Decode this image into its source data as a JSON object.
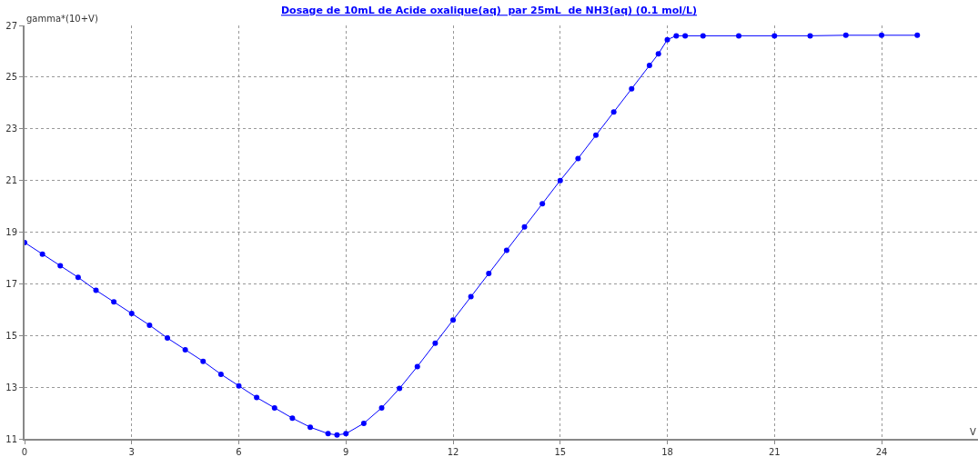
{
  "chart_data": {
    "type": "line",
    "title": "Dosage de 10mL de Acide oxalique(aq)  par 25mL  de NH3(aq) (0.1 mol/L)",
    "xlabel": "V",
    "ylabel": "gamma*(10+V)",
    "x": [
      0,
      0.5,
      1,
      1.5,
      2,
      2.5,
      3,
      3.5,
      4,
      4.5,
      5,
      5.5,
      6,
      6.5,
      7,
      7.5,
      8,
      8.5,
      8.75,
      9,
      9.5,
      10,
      10.5,
      11,
      11.5,
      12,
      12.5,
      13,
      13.5,
      14,
      14.5,
      15,
      15.5,
      16,
      16.5,
      17,
      17.5,
      17.75,
      18,
      18.25,
      18.5,
      19,
      20,
      21,
      22,
      23,
      24,
      25
    ],
    "series": [
      {
        "color": "#0000ff",
        "values": [
          18.6,
          18.15,
          17.7,
          17.25,
          16.75,
          16.3,
          15.85,
          15.4,
          14.9,
          14.45,
          14.0,
          13.5,
          13.05,
          12.6,
          12.2,
          11.8,
          11.45,
          11.2,
          11.15,
          11.2,
          11.6,
          12.2,
          12.95,
          13.8,
          14.7,
          15.6,
          16.5,
          17.4,
          18.3,
          19.2,
          20.1,
          21.0,
          21.85,
          22.75,
          23.65,
          24.55,
          25.45,
          25.9,
          26.45,
          26.6,
          26.6,
          26.6,
          26.6,
          26.6,
          26.6,
          26.62,
          26.62,
          26.62
        ]
      }
    ],
    "xlim": [
      0,
      26.7
    ],
    "ylim": [
      11,
      27
    ],
    "xticks": [
      0,
      3,
      6,
      9,
      12,
      15,
      18,
      21,
      24
    ],
    "yticks": [
      11,
      13,
      15,
      17,
      19,
      21,
      23,
      25,
      27
    ],
    "grid": true,
    "marker": "circle",
    "line_style": "solid"
  }
}
